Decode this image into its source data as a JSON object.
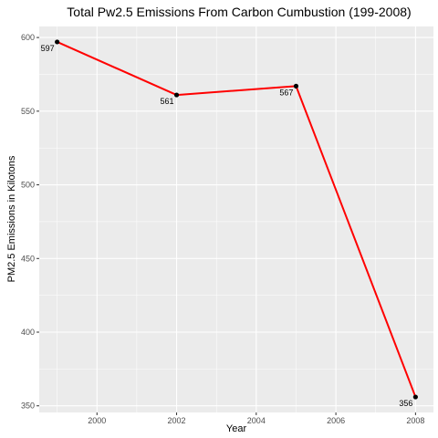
{
  "chart_data": {
    "type": "line",
    "title": "Total Pw2.5 Emissions From Carbon Cumbustion (199-2008)",
    "xlabel": "Year",
    "ylabel": "PM2.5 Emissions in Kilotons",
    "x": [
      1999,
      2002,
      2005,
      2008
    ],
    "series": [
      {
        "values": [
          597,
          561,
          567,
          356
        ],
        "labels": [
          "597",
          "561",
          "567",
          "356"
        ]
      }
    ],
    "xlim": [
      1998.55,
      2008.45
    ],
    "ylim": [
      345.5,
      607.5
    ],
    "xticks": [
      2000,
      2002,
      2004,
      2006,
      2008
    ],
    "xtick_labels": [
      "2000",
      "2002",
      "2004",
      "2006",
      "2008"
    ],
    "yticks": [
      350,
      400,
      450,
      500,
      550,
      600
    ],
    "ytick_labels": [
      "350",
      "400",
      "450",
      "500",
      "550",
      "600"
    ],
    "grid": true,
    "line_color": "#ff0000",
    "point_color": "#000000",
    "panel_color": "#ebebeb",
    "grid_color": "#ffffff"
  }
}
